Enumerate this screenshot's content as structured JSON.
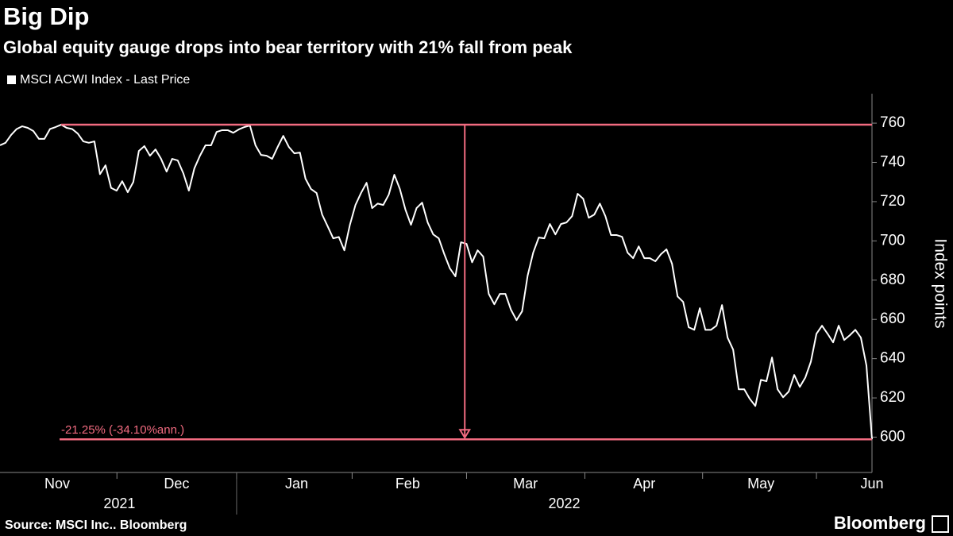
{
  "chart_data": {
    "type": "line",
    "title": "Big Dip",
    "subtitle": "Global equity gauge drops into bear territory with 21% fall from peak",
    "y_axis_label": "Index points",
    "source": "Source: MSCI Inc.. Bloomberg",
    "logo": "Bloomberg",
    "annotation": "-21.25% (-34.10%ann.)",
    "annotation_color": "#f26b80",
    "series": [
      {
        "name": "MSCI ACWI Index - Last Price",
        "color": "#ffffff",
        "values": [
          748.7,
          750,
          754,
          757,
          758.4,
          757.6,
          756,
          752,
          752,
          757,
          758,
          759.2,
          757.6,
          757,
          754.7,
          750.7,
          750,
          750.7,
          734,
          738.5,
          727,
          725.6,
          730.4,
          724.8,
          730,
          745.8,
          748.3,
          743.4,
          746.6,
          741.8,
          735.3,
          741.8,
          741,
          734.5,
          725.6,
          737,
          743.4,
          748.7,
          748.7,
          755.5,
          756.4,
          756.4,
          755.1,
          756.8,
          758,
          758.8,
          748.7,
          743.8,
          743.4,
          741.8,
          747.9,
          753.5,
          747.9,
          744.6,
          745,
          731.7,
          726.4,
          724.4,
          713.4,
          707.4,
          701.3,
          702,
          695.2,
          708.2,
          718.3,
          724.4,
          729.6,
          716.7,
          719,
          718.3,
          723.6,
          733.7,
          726.4,
          715.9,
          708.2,
          716.7,
          719.5,
          709.4,
          703.3,
          701.3,
          693.2,
          686,
          681.9,
          699.3,
          698.5,
          689.1,
          695.2,
          692,
          673,
          667.7,
          673,
          673,
          664.9,
          659.6,
          664.1,
          682.3,
          694,
          701.7,
          701.3,
          708.6,
          703.3,
          708.6,
          709.4,
          712.6,
          724,
          721.5,
          711.8,
          713.4,
          719,
          712.6,
          703,
          703,
          702.1,
          694,
          691.2,
          697.2,
          691.2,
          691.2,
          689.6,
          693.2,
          695.7,
          688.3,
          671.7,
          668.9,
          656,
          654.7,
          665.7,
          654.7,
          654.7,
          656.8,
          667.3,
          650.7,
          644.6,
          624.4,
          624.4,
          619.5,
          615.9,
          629.2,
          628.5,
          640.6,
          624.4,
          620.3,
          623.2,
          631.7,
          625.6,
          630.4,
          638.5,
          652.7,
          656.8,
          652.7,
          648.3,
          656.8,
          649.5,
          651.9,
          654.7,
          650.7,
          636.5,
          598.9
        ]
      }
    ],
    "xlim": [
      0,
      157
    ],
    "xticks": [
      {
        "value": 10.3,
        "label": "Nov"
      },
      {
        "value": 31.8,
        "label": "Dec"
      },
      {
        "value": 53.4,
        "label": "Jan"
      },
      {
        "value": 73.4,
        "label": "Feb"
      },
      {
        "value": 94.6,
        "label": "Mar"
      },
      {
        "value": 116,
        "label": "Apr"
      },
      {
        "value": 137,
        "label": "May"
      },
      {
        "value": 157,
        "label": "Jun"
      }
    ],
    "years": [
      {
        "value": 21.5,
        "label": "2021"
      },
      {
        "value": 101.6,
        "label": "2022"
      }
    ],
    "ylim": [
      582,
      775
    ],
    "yticks": [
      600,
      620,
      640,
      660,
      680,
      700,
      720,
      740,
      760
    ],
    "grid": false
  }
}
